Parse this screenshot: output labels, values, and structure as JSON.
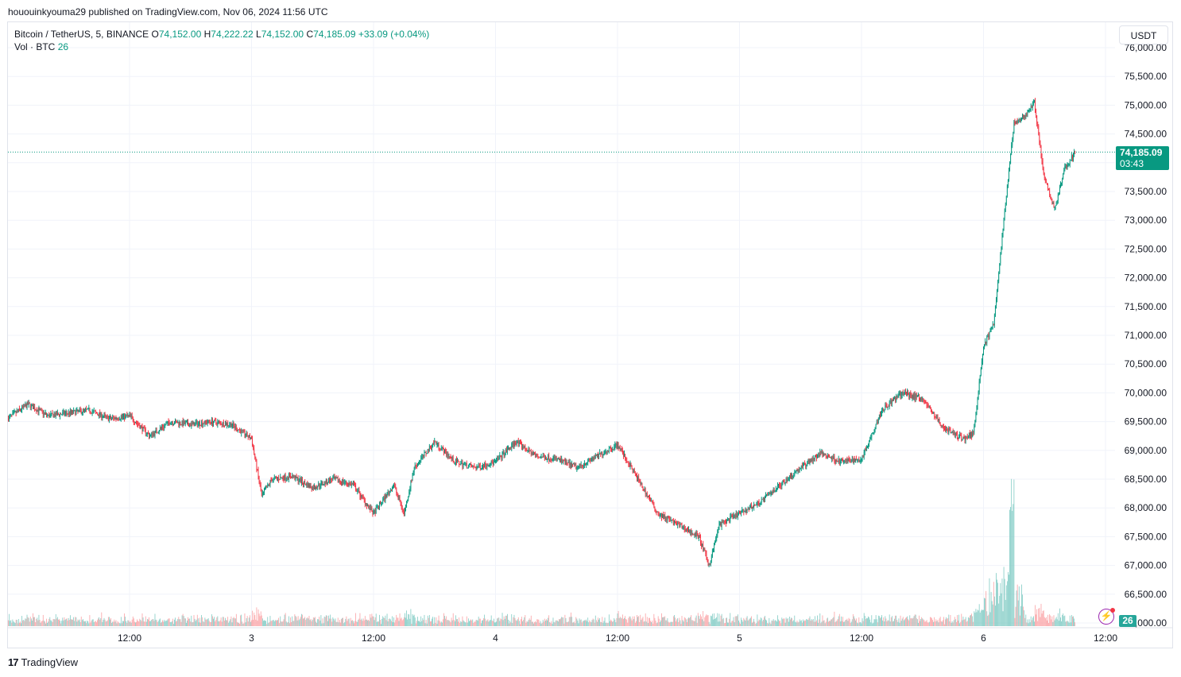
{
  "published": "hououinkyouma29 published on TradingView.com, Nov 06, 2024 11:56 UTC",
  "legend": {
    "symbol": "Bitcoin / TetherUS, 5, BINANCE",
    "open_label": "O",
    "open": "74,152.00",
    "high_label": "H",
    "high": "74,222.22",
    "low_label": "L",
    "low": "74,152.00",
    "close_label": "C",
    "close": "74,185.09",
    "change": "+33.09 (+0.04%)",
    "vol_label": "Vol · BTC",
    "vol": "26"
  },
  "currency_button": "USDT",
  "last_price": "74,185.09",
  "countdown": "03:43",
  "volume_badge": "26",
  "brand": "TradingView",
  "brand_logo": "17",
  "flash_icon": "⚡",
  "colors": {
    "up": "#089981",
    "down": "#f23645",
    "grid": "#f0f3fa",
    "text": "#131722",
    "up_vol": "#80cbc4",
    "down_vol": "#faa1a4"
  },
  "chart_data": {
    "type": "candlestick",
    "title": "Bitcoin / TetherUS, 5, BINANCE",
    "ylim": [
      66000,
      76000
    ],
    "y_ticks": [
      66000,
      66500,
      67000,
      67500,
      68000,
      68500,
      69000,
      69500,
      70000,
      70500,
      71000,
      71500,
      72000,
      72500,
      73000,
      73500,
      74000,
      74500,
      75000,
      75500,
      76000
    ],
    "y_tick_labels": [
      "66,000.00",
      "66,500.00",
      "67,000.00",
      "67,500.00",
      "68,000.00",
      "68,500.00",
      "69,000.00",
      "69,500.00",
      "70,000.00",
      "70,500.00",
      "71,000.00",
      "71,500.00",
      "72,000.00",
      "72,500.00",
      "73,000.00",
      "73,500.00",
      "74,000.00",
      "74,500.00",
      "75,000.00",
      "75,500.00",
      "76,000.00"
    ],
    "x_range_hours": [
      0,
      101
    ],
    "x_ticks": [
      {
        "label": "12:00",
        "hour": 12
      },
      {
        "label": "3",
        "hour": 24
      },
      {
        "label": "12:00",
        "hour": 36
      },
      {
        "label": "4",
        "hour": 48
      },
      {
        "label": "12:00",
        "hour": 60
      },
      {
        "label": "5",
        "hour": 72
      },
      {
        "label": "12:00",
        "hour": 84
      },
      {
        "label": "6",
        "hour": 96
      },
      {
        "label": "12:00",
        "hour": 108
      }
    ],
    "last_price": 74185.09,
    "price_path_hour_close": [
      [
        0,
        69550
      ],
      [
        2,
        69800
      ],
      [
        4,
        69600
      ],
      [
        6,
        69650
      ],
      [
        8,
        69700
      ],
      [
        10,
        69550
      ],
      [
        12,
        69600
      ],
      [
        14,
        69250
      ],
      [
        16,
        69500
      ],
      [
        18,
        69450
      ],
      [
        20,
        69500
      ],
      [
        22,
        69450
      ],
      [
        24,
        69200
      ],
      [
        25,
        68200
      ],
      [
        26,
        68500
      ],
      [
        28,
        68550
      ],
      [
        30,
        68350
      ],
      [
        32,
        68500
      ],
      [
        34,
        68400
      ],
      [
        36,
        67900
      ],
      [
        38,
        68400
      ],
      [
        39,
        67900
      ],
      [
        40,
        68700
      ],
      [
        42,
        69150
      ],
      [
        44,
        68800
      ],
      [
        46,
        68700
      ],
      [
        48,
        68800
      ],
      [
        50,
        69150
      ],
      [
        52,
        68900
      ],
      [
        54,
        68850
      ],
      [
        56,
        68700
      ],
      [
        58,
        68900
      ],
      [
        60,
        69100
      ],
      [
        62,
        68500
      ],
      [
        64,
        67900
      ],
      [
        66,
        67700
      ],
      [
        68,
        67500
      ],
      [
        69,
        67000
      ],
      [
        70,
        67700
      ],
      [
        72,
        67900
      ],
      [
        74,
        68100
      ],
      [
        76,
        68400
      ],
      [
        78,
        68700
      ],
      [
        80,
        68950
      ],
      [
        82,
        68800
      ],
      [
        84,
        68850
      ],
      [
        86,
        69700
      ],
      [
        88,
        70000
      ],
      [
        90,
        69900
      ],
      [
        92,
        69400
      ],
      [
        94,
        69200
      ],
      [
        95,
        69300
      ],
      [
        96,
        70800
      ],
      [
        97,
        71200
      ],
      [
        98,
        73000
      ],
      [
        99,
        74700
      ],
      [
        100,
        74800
      ],
      [
        101,
        75050
      ],
      [
        102,
        73700
      ],
      [
        103,
        73200
      ],
      [
        104,
        73900
      ],
      [
        105,
        74185
      ]
    ]
  }
}
